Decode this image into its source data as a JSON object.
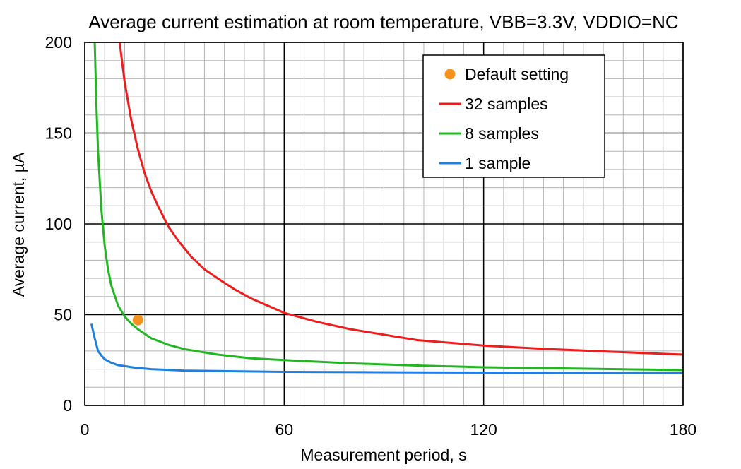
{
  "chart_data": {
    "type": "line",
    "title": "Average current estimation at room temperature, VBB=3.3V, VDDIO=NC",
    "xlabel": "Measurement period,  s",
    "ylabel": "Average  current, µA",
    "xlim": [
      0,
      180
    ],
    "ylim": [
      0,
      200
    ],
    "x_ticks": [
      "0",
      "60",
      "120",
      "180"
    ],
    "y_ticks": [
      "0",
      "50",
      "100",
      "150",
      "200"
    ],
    "x_major_step": 60,
    "x_minor_step": 6,
    "y_major_step": 50,
    "y_minor_step": 10,
    "grid": true,
    "legend_position": "top-right",
    "series": [
      {
        "name": "32 samples",
        "kind": "line",
        "color": "#ee1c1c",
        "x": [
          10.5,
          12,
          14,
          16,
          18,
          20,
          22,
          25,
          28,
          32,
          36,
          40,
          45,
          50,
          55,
          60,
          70,
          80,
          90,
          100,
          120,
          140,
          160,
          180
        ],
        "y": [
          200,
          178,
          157,
          141,
          128,
          118,
          110,
          99,
          91,
          82,
          75,
          70,
          64,
          59,
          55,
          51,
          46,
          42,
          39,
          36,
          33,
          31,
          29.5,
          28
        ]
      },
      {
        "name": "8 samples",
        "kind": "line",
        "color": "#22b722",
        "x": [
          3,
          3.5,
          4,
          5,
          6,
          7,
          8,
          10,
          12,
          14,
          16,
          18,
          20,
          25,
          30,
          40,
          50,
          60,
          80,
          100,
          120,
          140,
          160,
          180
        ],
        "y": [
          200,
          165,
          140,
          108,
          88,
          75,
          66,
          55,
          49,
          45,
          42,
          39.5,
          37,
          33.5,
          31,
          28,
          26,
          25,
          23.2,
          22,
          21,
          20.5,
          20,
          19.5
        ]
      },
      {
        "name": "1 sample",
        "kind": "line",
        "color": "#1f7fe0",
        "x": [
          2,
          3,
          4,
          5,
          6,
          8,
          10,
          15,
          20,
          30,
          60,
          100,
          140,
          180
        ],
        "y": [
          45,
          37,
          30,
          27.5,
          25.5,
          23.5,
          22.2,
          20.8,
          20,
          19.2,
          18.5,
          18.2,
          18,
          17.8
        ]
      },
      {
        "name": "Default setting",
        "kind": "marker",
        "color": "#f5921e",
        "x": [
          16
        ],
        "y": [
          47
        ]
      }
    ]
  }
}
